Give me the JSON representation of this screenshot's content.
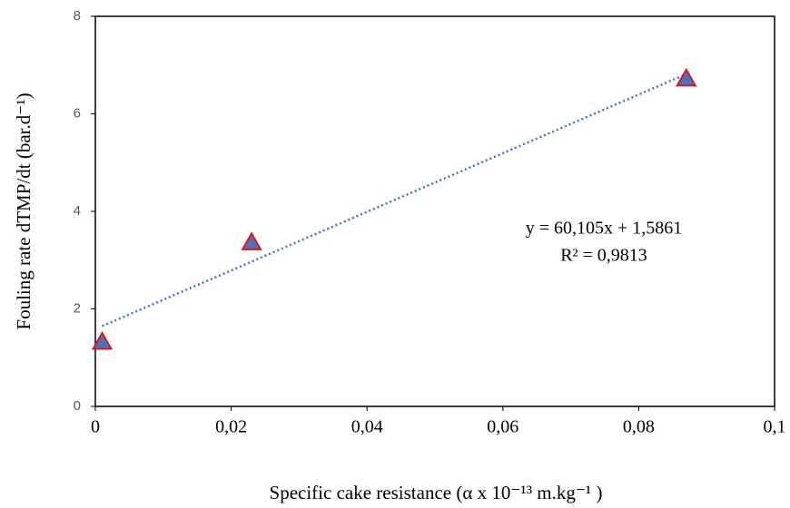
{
  "chart_data": {
    "type": "scatter",
    "x_label": "Specific cake resistance (α x 10⁻¹³ m.kg⁻¹ )",
    "y_label": "Fouling rate dTMP/dt (bar.d⁻¹)",
    "x": [
      0.001,
      0.023,
      0.087
    ],
    "series": [
      {
        "color": "#4a72b8",
        "values": [
          1.32,
          3.36,
          6.72
        ]
      }
    ],
    "marker_edge_color": "#e0141e",
    "trendline": {
      "slope": 60.105,
      "intercept": 1.5861,
      "color": "#4472c4"
    },
    "annotations": [
      "y = 60,105x + 1,5861",
      "R² = 0,9813"
    ],
    "xlim": [
      0,
      0.1
    ],
    "ylim": [
      0,
      8
    ],
    "xticks": [
      0,
      {
        "value": 0.02,
        "label": "0,02"
      },
      {
        "value": 0.04,
        "label": "0,04"
      },
      {
        "value": 0.06,
        "label": "0,06"
      },
      {
        "value": 0.08,
        "label": "0,08"
      },
      {
        "value": 0.1,
        "label": "0,1"
      }
    ],
    "yticks": [
      0,
      2,
      4,
      6,
      8
    ]
  }
}
